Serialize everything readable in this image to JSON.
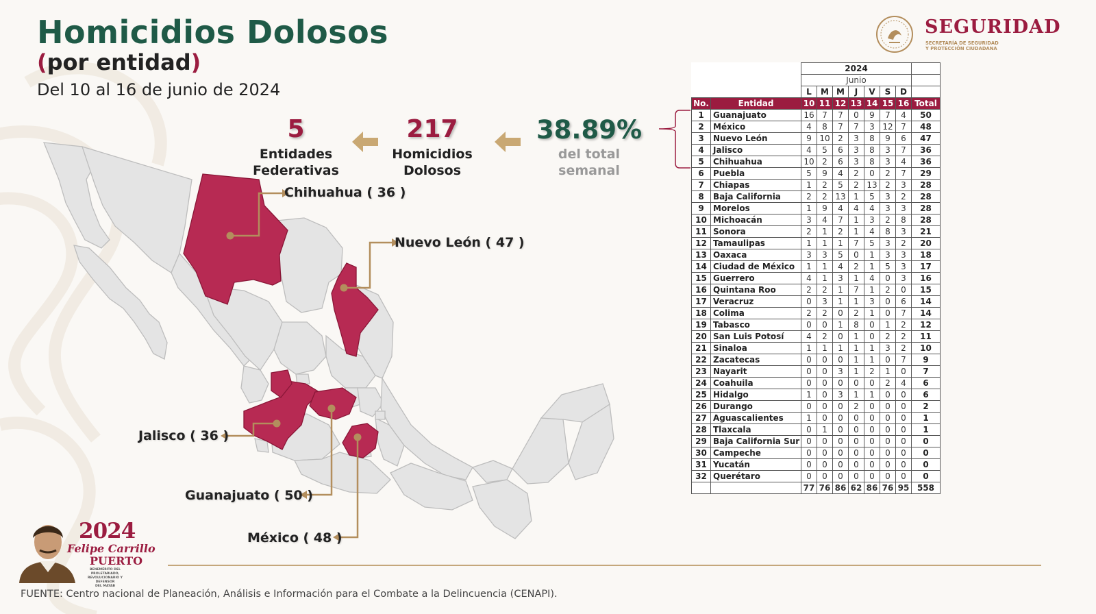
{
  "header": {
    "title": "Homicidios Dolosos",
    "subtitle_open": "(",
    "subtitle_text": "por entidad",
    "subtitle_close": ")",
    "date_range": "Del 10 al 16 de junio de 2024"
  },
  "logo": {
    "word": "SEGURIDAD",
    "sub_line1": "SECRETARÍA DE SEGURIDAD",
    "sub_line2": "Y PROTECCIÓN CIUDADANA",
    "icon": "mexico-seal-icon"
  },
  "summary": {
    "entities_value": "5",
    "entities_label1": "Entidades",
    "entities_label2": "Federativas",
    "homicides_value": "217",
    "homicides_label1": "Homicidios",
    "homicides_label2": "Dolosos",
    "percent_value": "38.89%",
    "percent_label1": "del total",
    "percent_label2": "semanal",
    "arrow_icon": "arrow-left-icon",
    "colors": {
      "accent": "#9b1c40",
      "green": "#1f5a47",
      "gold": "#b38e5d"
    }
  },
  "map": {
    "callouts": [
      {
        "label": "Chihuahua ( 36 )"
      },
      {
        "label": "Nuevo León ( 47 )"
      },
      {
        "label": "Jalisco ( 36 )"
      },
      {
        "label": "Guanajuato ( 50 )"
      },
      {
        "label": "México ( 48 )"
      }
    ]
  },
  "table": {
    "year": "2024",
    "month": "Junio",
    "days_of_week": [
      "L",
      "M",
      "M",
      "J",
      "V",
      "S",
      "D"
    ],
    "col_no": "No.",
    "col_entity": "Entidad",
    "day_numbers": [
      "10",
      "11",
      "12",
      "13",
      "14",
      "15",
      "16"
    ],
    "col_total": "Total",
    "totals": [
      "77",
      "76",
      "86",
      "62",
      "86",
      "76",
      "95",
      "558"
    ]
  },
  "chart_data": {
    "type": "table",
    "title": "Homicidios Dolosos",
    "columns": [
      "No.",
      "Entidad",
      "10",
      "11",
      "12",
      "13",
      "14",
      "15",
      "16",
      "Total"
    ],
    "rows": [
      [
        "1",
        "Guanajuato",
        16,
        7,
        7,
        0,
        9,
        7,
        4,
        50
      ],
      [
        "2",
        "México",
        4,
        8,
        7,
        7,
        3,
        12,
        7,
        48
      ],
      [
        "3",
        "Nuevo León",
        9,
        10,
        2,
        3,
        8,
        9,
        6,
        47
      ],
      [
        "4",
        "Jalisco",
        4,
        5,
        6,
        3,
        8,
        3,
        7,
        36
      ],
      [
        "5",
        "Chihuahua",
        10,
        2,
        6,
        3,
        8,
        3,
        4,
        36
      ],
      [
        "6",
        "Puebla",
        5,
        9,
        4,
        2,
        0,
        2,
        7,
        29
      ],
      [
        "7",
        "Chiapas",
        1,
        2,
        5,
        2,
        13,
        2,
        3,
        28
      ],
      [
        "8",
        "Baja California",
        2,
        2,
        13,
        1,
        5,
        3,
        2,
        28
      ],
      [
        "9",
        "Morelos",
        1,
        9,
        4,
        4,
        4,
        3,
        3,
        28
      ],
      [
        "10",
        "Michoacán",
        3,
        4,
        7,
        1,
        3,
        2,
        8,
        28
      ],
      [
        "11",
        "Sonora",
        2,
        1,
        2,
        1,
        4,
        8,
        3,
        21
      ],
      [
        "12",
        "Tamaulipas",
        1,
        1,
        1,
        7,
        5,
        3,
        2,
        20
      ],
      [
        "13",
        "Oaxaca",
        3,
        3,
        5,
        0,
        1,
        3,
        3,
        18
      ],
      [
        "14",
        "Ciudad de México",
        1,
        1,
        4,
        2,
        1,
        5,
        3,
        17
      ],
      [
        "15",
        "Guerrero",
        4,
        1,
        3,
        1,
        4,
        0,
        3,
        16
      ],
      [
        "16",
        "Quintana Roo",
        2,
        2,
        1,
        7,
        1,
        2,
        0,
        15
      ],
      [
        "17",
        "Veracruz",
        0,
        3,
        1,
        1,
        3,
        0,
        6,
        14
      ],
      [
        "18",
        "Colima",
        2,
        2,
        0,
        2,
        1,
        0,
        7,
        14
      ],
      [
        "19",
        "Tabasco",
        0,
        0,
        1,
        8,
        0,
        1,
        2,
        12
      ],
      [
        "20",
        "San Luis Potosí",
        4,
        2,
        0,
        1,
        0,
        2,
        2,
        11
      ],
      [
        "21",
        "Sinaloa",
        1,
        1,
        1,
        1,
        1,
        3,
        2,
        10
      ],
      [
        "22",
        "Zacatecas",
        0,
        0,
        0,
        1,
        1,
        0,
        7,
        9
      ],
      [
        "23",
        "Nayarit",
        0,
        0,
        3,
        1,
        2,
        1,
        0,
        7
      ],
      [
        "24",
        "Coahuila",
        0,
        0,
        0,
        0,
        0,
        2,
        4,
        6
      ],
      [
        "25",
        "Hidalgo",
        1,
        0,
        3,
        1,
        1,
        0,
        0,
        6
      ],
      [
        "26",
        "Durango",
        0,
        0,
        0,
        2,
        0,
        0,
        0,
        2
      ],
      [
        "27",
        "Aguascalientes",
        1,
        0,
        0,
        0,
        0,
        0,
        0,
        1
      ],
      [
        "28",
        "Tlaxcala",
        0,
        1,
        0,
        0,
        0,
        0,
        0,
        1
      ],
      [
        "29",
        "Baja California Sur",
        0,
        0,
        0,
        0,
        0,
        0,
        0,
        0
      ],
      [
        "30",
        "Campeche",
        0,
        0,
        0,
        0,
        0,
        0,
        0,
        0
      ],
      [
        "31",
        "Yucatán",
        0,
        0,
        0,
        0,
        0,
        0,
        0,
        0
      ],
      [
        "32",
        "Querétaro",
        0,
        0,
        0,
        0,
        0,
        0,
        0,
        0
      ]
    ]
  },
  "emblem": {
    "year": "2024",
    "name_line1": "Felipe Carrillo",
    "name_line2": "PUERTO",
    "tagline1": "BENEMÉRITO DEL PROLETARIADO,",
    "tagline2": "REVOLUCIONARIO Y DEFENSOR",
    "tagline3": "DEL MAYAB",
    "icon": "felipe-carrillo-portrait-icon"
  },
  "footer": {
    "source": "FUENTE: Centro nacional de Planeación, Análisis e Información para el Combate a la Delincuencia (CENAPI)."
  }
}
